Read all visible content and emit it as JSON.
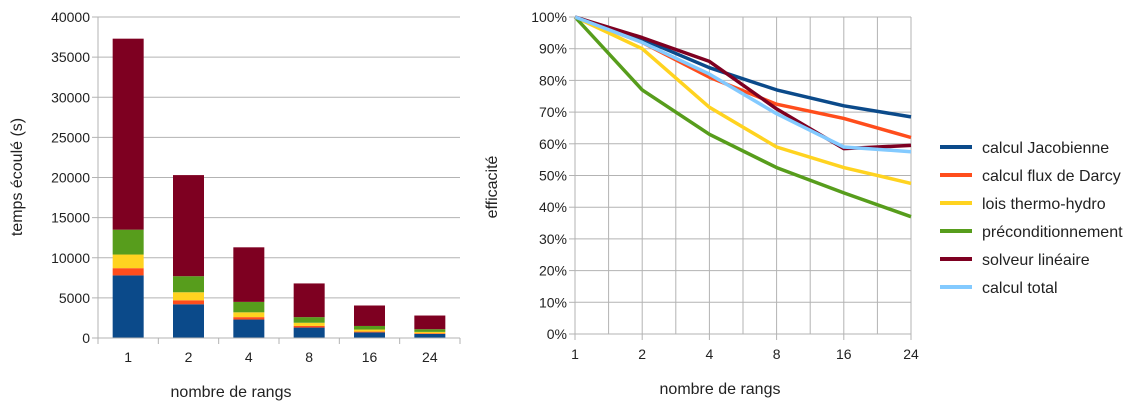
{
  "chart_data": [
    {
      "type": "bar",
      "stacked": true,
      "categories": [
        "1",
        "2",
        "4",
        "8",
        "16",
        "24"
      ],
      "series": [
        {
          "values": [
            7800,
            4200,
            2300,
            1300,
            700,
            500
          ],
          "color": "#0b4a8a"
        },
        {
          "values": [
            900,
            500,
            300,
            200,
            100,
            80
          ],
          "color": "#ff4d1c"
        },
        {
          "values": [
            1700,
            1000,
            600,
            400,
            250,
            180
          ],
          "color": "#ffd320"
        },
        {
          "values": [
            3100,
            2000,
            1300,
            700,
            450,
            340
          ],
          "color": "#579d1c"
        },
        {
          "values": [
            23800,
            12600,
            6800,
            4200,
            2550,
            1700
          ],
          "color": "#7e0021"
        }
      ],
      "xlabel": "nombre de rangs",
      "ylabel": "temps écoulé (s)",
      "ylim": [
        0,
        40000
      ],
      "yticks": [
        "0",
        "5000",
        "10000",
        "15000",
        "20000",
        "25000",
        "30000",
        "35000",
        "40000"
      ],
      "grid": true
    },
    {
      "type": "line",
      "x": [
        "1",
        "2",
        "4",
        "8",
        "16",
        "24"
      ],
      "series": [
        {
          "name": "calcul Jacobienne",
          "values": [
            100,
            93,
            84,
            77,
            72,
            68.5
          ],
          "color": "#0b4a8a"
        },
        {
          "name": "calcul flux de Darcy",
          "values": [
            100,
            92,
            81,
            72.5,
            68,
            62
          ],
          "color": "#ff4d1c"
        },
        {
          "name": "lois thermo-hydro",
          "values": [
            100,
            90,
            71.5,
            59,
            52.5,
            47.5
          ],
          "color": "#ffd320"
        },
        {
          "name": "préconditionnement",
          "values": [
            100,
            77,
            63,
            52.5,
            44.5,
            37
          ],
          "color": "#579d1c"
        },
        {
          "name": "solveur linéaire",
          "values": [
            100,
            93.5,
            86,
            71,
            58.5,
            59.5
          ],
          "color": "#7e0021"
        },
        {
          "name": "calcul total",
          "values": [
            100,
            92,
            82,
            69.5,
            59,
            57.5
          ],
          "color": "#83caff"
        }
      ],
      "xlabel": "nombre de rangs",
      "ylabel": "efficacité",
      "ylim": [
        0,
        100
      ],
      "yticks": [
        "0%",
        "10%",
        "20%",
        "30%",
        "40%",
        "50%",
        "60%",
        "70%",
        "80%",
        "90%",
        "100%"
      ],
      "legend": "right",
      "grid": true
    }
  ]
}
